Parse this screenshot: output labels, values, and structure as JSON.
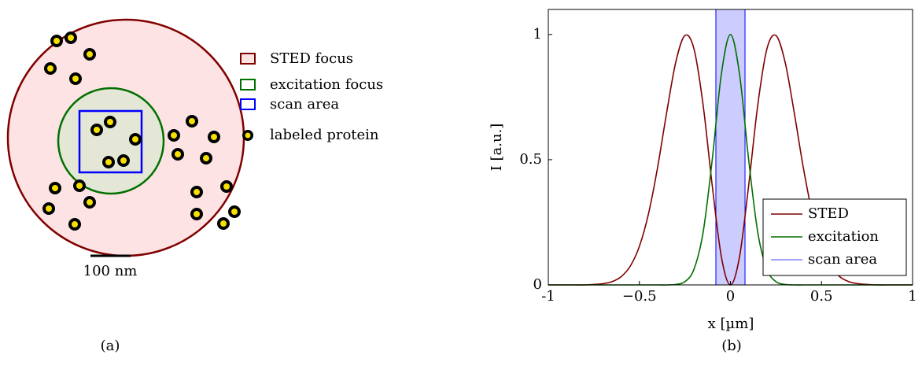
{
  "diagram": {
    "legend": [
      "STED focus",
      "excitation focus",
      "scan area",
      "labeled protein"
    ],
    "scale_bar": "100 nm",
    "caption": "(a)"
  },
  "chart_data": {
    "type": "line",
    "caption": "(b)",
    "x_label": "x [µm]",
    "y_label": "I [a.u.]",
    "x": [
      -1,
      -0.95,
      -0.9,
      -0.85,
      -0.8,
      -0.75,
      -0.7,
      -0.65,
      -0.6,
      -0.55,
      -0.5,
      -0.45,
      -0.4,
      -0.35,
      -0.3,
      -0.25,
      -0.2,
      -0.15,
      -0.1,
      -0.05,
      0,
      0.05,
      0.1,
      0.15,
      0.2,
      0.25,
      0.3,
      0.35,
      0.4,
      0.45,
      0.5,
      0.55,
      0.6,
      0.65,
      0.7,
      0.75,
      0.8,
      0.85,
      0.9,
      0.95,
      1
    ],
    "series": [
      {
        "name": "STED",
        "color": "#800000",
        "values": [
          0,
          0,
          0,
          0,
          0,
          0.002,
          0.005,
          0.013,
          0.033,
          0.075,
          0.154,
          0.284,
          0.469,
          0.689,
          0.89,
          0.996,
          0.942,
          0.718,
          0.397,
          0.113,
          0,
          0.113,
          0.397,
          0.718,
          0.942,
          0.996,
          0.89,
          0.689,
          0.469,
          0.284,
          0.154,
          0.075,
          0.033,
          0.013,
          0.005,
          0.002,
          0,
          0,
          0,
          0,
          0
        ]
      },
      {
        "name": "excitation",
        "color": "#007000",
        "values": [
          0,
          0,
          0,
          0,
          0,
          0,
          0,
          0,
          0,
          0,
          0,
          0,
          0,
          0,
          0.002,
          0.013,
          0.063,
          0.21,
          0.5,
          0.841,
          1,
          0.841,
          0.5,
          0.21,
          0.063,
          0.013,
          0.002,
          0,
          0,
          0,
          0,
          0,
          0,
          0,
          0,
          0,
          0,
          0,
          0,
          0,
          0
        ]
      }
    ],
    "span": {
      "name": "scan area",
      "color": "#0000ff",
      "x": [
        -0.08,
        0.08
      ]
    },
    "xlim": [
      -1,
      1
    ],
    "xticks": [
      -1,
      {
        "value": -0.5,
        "label": "−0.5"
      },
      0,
      0.5,
      1
    ],
    "ylim": [
      0,
      1.1
    ],
    "yticks": [
      0,
      0.5,
      1
    ]
  }
}
